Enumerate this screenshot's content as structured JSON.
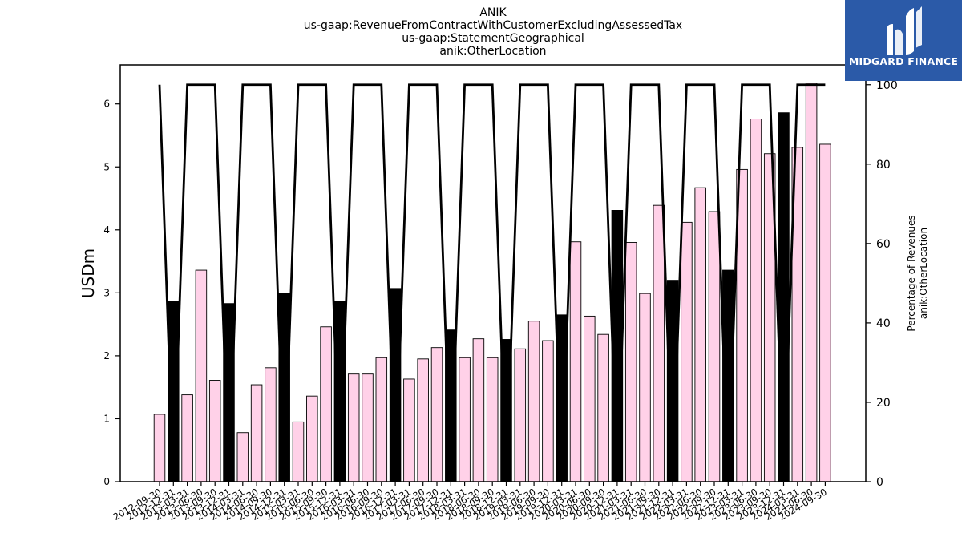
{
  "chart_data": {
    "type": "bar",
    "title_lines": [
      "ANIK",
      "us-gaap:RevenueFromContractWithCustomerExcludingAssessedTax",
      "us-gaap:StatementGeographical",
      "anik:OtherLocation"
    ],
    "ylabel": "USDm",
    "ylabel_right": [
      "Percentage of Revenues",
      "anik:OtherLocation"
    ],
    "ylim": [
      0,
      6.62
    ],
    "yticks": [
      0,
      1,
      2,
      3,
      4,
      5,
      6
    ],
    "ylim_right": [
      0,
      105
    ],
    "yticks_right": [
      0,
      20,
      40,
      60,
      80,
      100
    ],
    "categories": [
      "2012-09-30",
      "2012-12-31",
      "2013-03-31",
      "2013-06-30",
      "2013-09-30",
      "2013-12-31",
      "2014-03-31",
      "2014-06-30",
      "2014-09-30",
      "2014-12-31",
      "2015-03-31",
      "2015-06-30",
      "2015-09-30",
      "2015-12-31",
      "2016-03-31",
      "2016-06-30",
      "2016-09-30",
      "2016-12-31",
      "2017-03-31",
      "2017-06-30",
      "2017-09-30",
      "2017-12-31",
      "2018-03-31",
      "2018-06-30",
      "2018-09-30",
      "2018-12-31",
      "2019-03-31",
      "2019-06-30",
      "2019-09-30",
      "2019-12-31",
      "2020-03-31",
      "2020-06-30",
      "2020-09-30",
      "2020-12-31",
      "2021-03-31",
      "2021-06-30",
      "2021-09-30",
      "2021-12-31",
      "2022-03-31",
      "2022-06-30",
      "2022-09-30",
      "2022-12-31",
      "2023-03-31",
      "2023-06-30",
      "2023-09-30",
      "2023-12-31",
      "2024-03-31",
      "2024-06-30",
      "2024-09-30"
    ],
    "values": [
      1.07,
      2.87,
      1.38,
      3.36,
      1.61,
      2.83,
      0.78,
      1.54,
      1.81,
      2.99,
      0.95,
      1.36,
      2.46,
      2.86,
      1.71,
      1.71,
      1.97,
      3.07,
      1.63,
      1.95,
      2.13,
      2.41,
      1.97,
      2.27,
      1.97,
      2.26,
      2.11,
      2.55,
      2.24,
      2.65,
      3.81,
      2.63,
      2.34,
      4.31,
      3.8,
      2.99,
      4.39,
      3.2,
      4.12,
      4.67,
      4.29,
      3.36,
      4.96,
      5.76,
      5.21,
      5.86,
      5.31,
      6.33,
      5.36
    ],
    "bar_colors": {
      "normal": "#ffd1e8",
      "annual": "#000000",
      "edge": "#000000"
    },
    "annual_flags": [
      false,
      true,
      false,
      false,
      false,
      true,
      false,
      false,
      false,
      true,
      false,
      false,
      false,
      true,
      false,
      false,
      false,
      true,
      false,
      false,
      false,
      true,
      false,
      false,
      false,
      true,
      false,
      false,
      false,
      true,
      false,
      false,
      false,
      true,
      false,
      false,
      false,
      true,
      false,
      false,
      false,
      true,
      false,
      false,
      false,
      true,
      false,
      false,
      false
    ],
    "line_series": {
      "values": [
        100,
        0,
        100,
        100,
        100,
        0,
        100,
        100,
        100,
        0,
        100,
        100,
        100,
        0,
        100,
        100,
        100,
        0,
        100,
        100,
        100,
        0,
        100,
        100,
        100,
        0,
        100,
        100,
        100,
        0,
        100,
        100,
        100,
        0,
        100,
        100,
        100,
        0,
        100,
        100,
        100,
        0,
        100,
        100,
        100,
        0,
        100,
        100,
        100
      ],
      "color": "#000000"
    },
    "xtick_rotation": "30deg",
    "grid": false
  },
  "brand": {
    "name": "MIDGARD FINANCE",
    "background": "#2b5aa8",
    "icon": "midgard-logo-icon"
  }
}
